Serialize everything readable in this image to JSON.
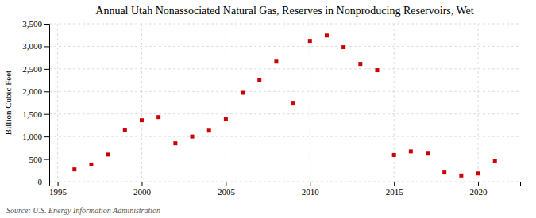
{
  "chart_data": {
    "type": "scatter",
    "title": "Annual Utah Nonassociated Natural Gas, Reserves in Nonproducing Reservoirs, Wet",
    "ylabel": "Billion Cubic Feet",
    "source": "Source: U.S. Energy Information Administration",
    "x": [
      1996,
      1997,
      1998,
      1999,
      2000,
      2001,
      2002,
      2003,
      2004,
      2005,
      2006,
      2007,
      2008,
      2009,
      2010,
      2011,
      2012,
      2013,
      2014,
      2015,
      2016,
      2017,
      2018,
      2019,
      2020,
      2021
    ],
    "values": [
      270,
      380,
      600,
      1150,
      1360,
      1430,
      850,
      1000,
      1130,
      1380,
      1970,
      2260,
      2660,
      1730,
      3120,
      3240,
      2980,
      2610,
      2470,
      590,
      670,
      620,
      200,
      135,
      180,
      460
    ],
    "color": "#cc0000",
    "marker": "square",
    "xlim": [
      1994.5,
      2022.5
    ],
    "xticks": [
      1995,
      2000,
      2005,
      2010,
      2015,
      2020
    ],
    "ylim": [
      0,
      3500
    ],
    "yticks": [
      0,
      500,
      {
        "value": 1000,
        "label": "1,000"
      },
      {
        "value": 1500,
        "label": "1,500"
      },
      {
        "value": 2000,
        "label": "2,000"
      },
      {
        "value": 2500,
        "label": "2,500"
      },
      {
        "value": 3000,
        "label": "3,000"
      },
      {
        "value": 3500,
        "label": "3,500"
      }
    ],
    "grid": true
  }
}
